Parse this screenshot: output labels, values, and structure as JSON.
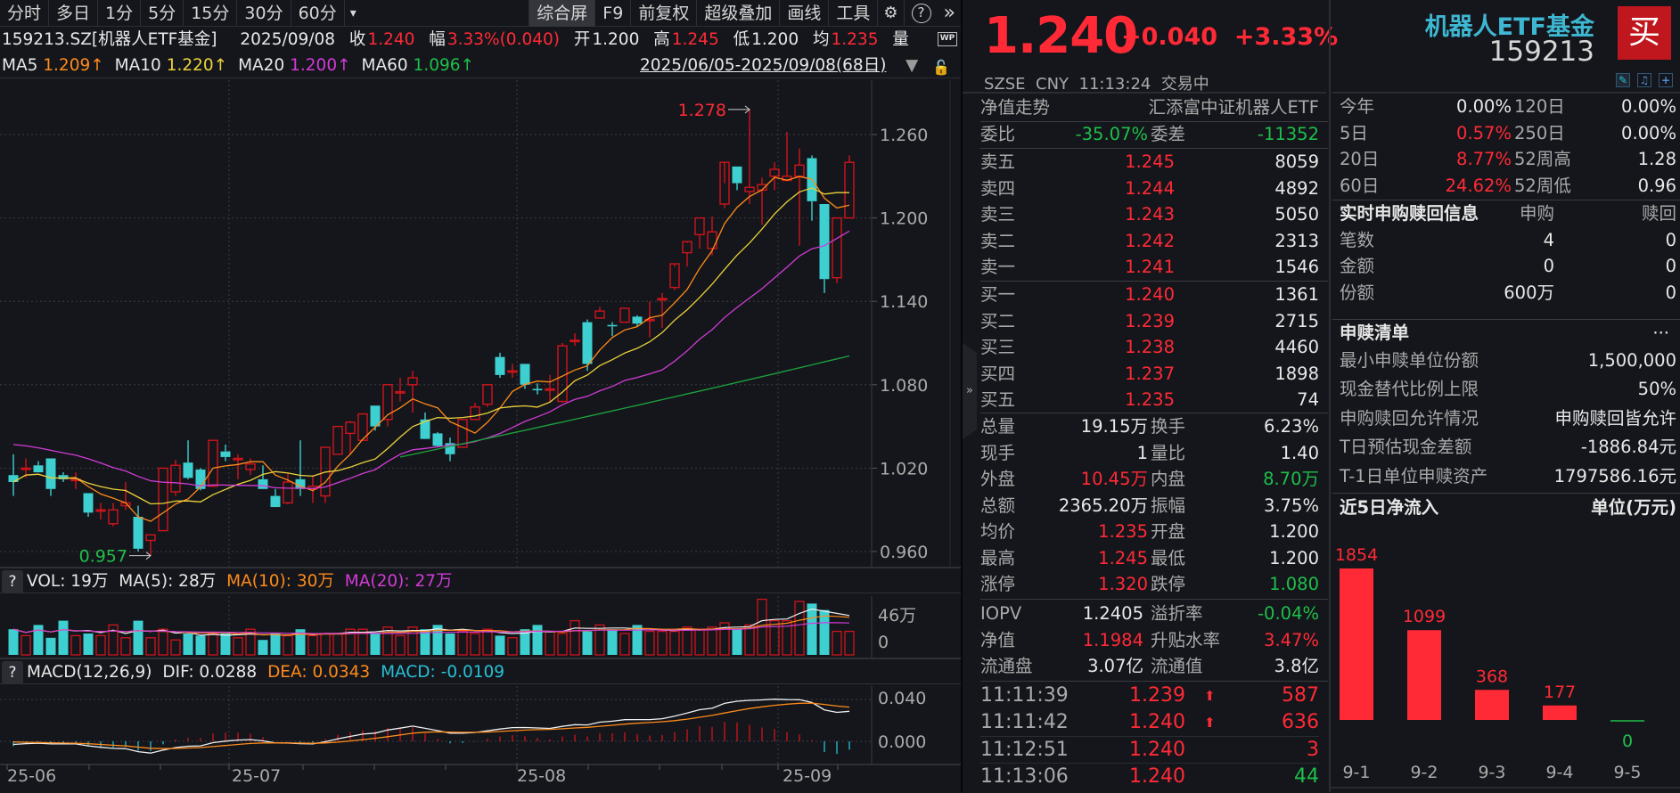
{
  "toolbar": {
    "tabs": [
      "分时",
      "多日",
      "1分",
      "5分",
      "15分",
      "30分",
      "60分"
    ],
    "more_periods": "▾",
    "right_tabs": [
      "综合屏",
      "F9",
      "前复权",
      "超级叠加",
      "画线",
      "工具"
    ],
    "active_tab": "综合屏",
    "settings_icon": "⚙",
    "help_icon": "?",
    "expand_icon": "»"
  },
  "info": {
    "symbol": "159213.SZ[机器人ETF基金]",
    "date": "2025/09/08",
    "close_label": "收",
    "close": "1.240",
    "range_label": "幅",
    "range": "3.33%(0.040)",
    "open_label": "开",
    "open": "1.200",
    "high_label": "高",
    "high": "1.245",
    "low_label": "低",
    "low": "1.200",
    "avg_label": "均",
    "avg": "1.235",
    "volume_label": "量",
    "wp_badge": "WP"
  },
  "ma": {
    "ma5_label": "MA5",
    "ma5": "1.209↑",
    "ma10_label": "MA10",
    "ma10": "1.220↑",
    "ma20_label": "MA20",
    "ma20": "1.200↑",
    "ma60_label": "MA60",
    "ma60": "1.096↑",
    "date_range": "2025/06/05-2025/09/08(68日)",
    "dropdown_icon": "▼",
    "lock_icon": "🔓"
  },
  "volume_panel": {
    "help": "?",
    "vol_label": "VOL: 19万",
    "ma5_label": "MA(5): 28万",
    "ma10_label": "MA(10): 30万",
    "ma20_label": "MA(20): 27万",
    "axis_top": "46万",
    "axis_zero": "0"
  },
  "macd_panel": {
    "help": "?",
    "title": "MACD(12,26,9)",
    "dif_label": "DIF: 0.0288",
    "dea_label": "DEA: 0.0343",
    "macd_label": "MACD: -0.0109",
    "axis_top": "0.040",
    "axis_zero": "0.000"
  },
  "x_axis": [
    "25-06",
    "25-07",
    "25-08",
    "25-09"
  ],
  "colors": {
    "up": "#ff2a36",
    "down": "#27c0d6",
    "ma5": "#ff8a1a",
    "ma10": "#ecd23a",
    "ma20": "#d23bd6",
    "ma60": "#1e9f3e",
    "up_candle": "#d0141c",
    "down_candle": "#3ecfd0"
  },
  "quote": {
    "price": "1.240",
    "change": "+0.040",
    "change_pct": "+3.33%",
    "exchange": "SZSE",
    "currency": "CNY",
    "time": "11:13:24",
    "trade_status": "交易中",
    "nav_trend_label": "净值走势",
    "fund_full_name": "汇添富中证机器人ETF",
    "weibi_label": "委比",
    "weibi": "-35.07%",
    "weicha_label": "委差",
    "weicha": "-11352",
    "asks": [
      {
        "label": "卖五",
        "price": "1.245",
        "vol": "8059"
      },
      {
        "label": "卖四",
        "price": "1.244",
        "vol": "4892"
      },
      {
        "label": "卖三",
        "price": "1.243",
        "vol": "5050"
      },
      {
        "label": "卖二",
        "price": "1.242",
        "vol": "2313"
      },
      {
        "label": "卖一",
        "price": "1.241",
        "vol": "1546"
      }
    ],
    "bids": [
      {
        "label": "买一",
        "price": "1.240",
        "vol": "1361"
      },
      {
        "label": "买二",
        "price": "1.239",
        "vol": "2715"
      },
      {
        "label": "买三",
        "price": "1.238",
        "vol": "4460"
      },
      {
        "label": "买四",
        "price": "1.237",
        "vol": "1898"
      },
      {
        "label": "买五",
        "price": "1.235",
        "vol": "74"
      }
    ],
    "stats": [
      {
        "l1": "总量",
        "v1": "19.15万",
        "c1": "white",
        "l2": "换手",
        "v2": "6.23%",
        "c2": "white"
      },
      {
        "l1": "现手",
        "v1": "1",
        "c1": "white",
        "l2": "量比",
        "v2": "1.40",
        "c2": "white"
      },
      {
        "l1": "外盘",
        "v1": "10.45万",
        "c1": "red",
        "l2": "内盘",
        "v2": "8.70万",
        "c2": "green"
      },
      {
        "l1": "总额",
        "v1": "2365.20万",
        "c1": "white",
        "l2": "振幅",
        "v2": "3.75%",
        "c2": "white"
      },
      {
        "l1": "均价",
        "v1": "1.235",
        "c1": "red",
        "l2": "开盘",
        "v2": "1.200",
        "c2": "white"
      },
      {
        "l1": "最高",
        "v1": "1.245",
        "c1": "red",
        "l2": "最低",
        "v2": "1.200",
        "c2": "white"
      },
      {
        "l1": "涨停",
        "v1": "1.320",
        "c1": "red",
        "l2": "跌停",
        "v2": "1.080",
        "c2": "green"
      }
    ],
    "etf_stats": [
      {
        "l1": "IOPV",
        "v1": "1.2405",
        "c1": "white",
        "l2": "溢折率",
        "v2": "-0.04%",
        "c2": "green"
      },
      {
        "l1": "净值",
        "v1": "1.1984",
        "c1": "red",
        "l2": "升贴水率",
        "v2": "3.47%",
        "c2": "red"
      },
      {
        "l1": "流通盘",
        "v1": "3.07亿",
        "c1": "white",
        "l2": "流通值",
        "v2": "3.8亿",
        "c2": "white"
      }
    ],
    "ticks": [
      {
        "time": "11:11:39",
        "price": "1.239",
        "arrow": "🠅",
        "vol": "587",
        "vc": "red"
      },
      {
        "time": "11:11:42",
        "price": "1.240",
        "arrow": "🠅",
        "vol": "636",
        "vc": "red"
      },
      {
        "time": "11:12:51",
        "price": "1.240",
        "arrow": "",
        "vol": "3",
        "vc": "red"
      },
      {
        "time": "11:13:06",
        "price": "1.240",
        "arrow": "",
        "vol": "44",
        "vc": "green"
      }
    ]
  },
  "right": {
    "fund_name": "机器人ETF基金",
    "fund_code": "159213",
    "buy_label": "买",
    "perf": [
      {
        "l1": "今年",
        "v1": "0.00%",
        "c1": "white",
        "l2": "120日",
        "v2": "0.00%"
      },
      {
        "l1": "5日",
        "v1": "0.57%",
        "c1": "red",
        "l2": "250日",
        "v2": "0.00%"
      },
      {
        "l1": "20日",
        "v1": "8.77%",
        "c1": "red",
        "l2": "52周高",
        "v2": "1.28"
      },
      {
        "l1": "60日",
        "v1": "24.62%",
        "c1": "red",
        "l2": "52周低",
        "v2": "0.96"
      }
    ],
    "creation": {
      "title": "实时申购赎回信息",
      "col1": "申购",
      "col2": "赎回",
      "rows": [
        {
          "label": "笔数",
          "sub": "4",
          "red": "0"
        },
        {
          "label": "金额",
          "sub": "0",
          "red": "0"
        },
        {
          "label": "份额",
          "sub": "600万",
          "red": "0"
        }
      ]
    },
    "pcf": {
      "title": "申赎清单",
      "more": "···",
      "rows": [
        {
          "label": "最小申赎单位份额",
          "value": "1,500,000"
        },
        {
          "label": "现金替代比例上限",
          "value": "50%"
        },
        {
          "label": "申购赎回允许情况",
          "value": "申购赎回皆允许"
        },
        {
          "label": "T日预估现金差额",
          "value": "-1886.84元"
        },
        {
          "label": "T-1日单位申赎资产",
          "value": "1797586.16元"
        }
      ]
    },
    "flow": {
      "title": "近5日净流入",
      "unit": "单位(万元)"
    }
  },
  "chart_data": [
    {
      "type": "bar",
      "title": "近5日净流入",
      "ylabel": "单位(万元)",
      "categories": [
        "9-1",
        "9-2",
        "9-3",
        "9-4",
        "9-5"
      ],
      "values": [
        1854,
        1099,
        368,
        177,
        0
      ]
    },
    {
      "type": "candlestick",
      "title": "159213.SZ 日K",
      "y_ticks": [
        "1.260",
        "1.200",
        "1.140",
        "1.080",
        "1.020",
        "0.960"
      ],
      "x_ticks": [
        "25-06",
        "25-07",
        "25-08",
        "25-09"
      ],
      "annotations": [
        {
          "label": "1.278",
          "type": "high"
        },
        {
          "label": "0.957",
          "type": "low"
        }
      ],
      "candles": [
        [
          1.015,
          1.03,
          1.01,
          1.0
        ],
        [
          1.02,
          1.027,
          1.02,
          1.013
        ],
        [
          1.022,
          1.025,
          1.017,
          1.02
        ],
        [
          1.027,
          1.027,
          1.005,
          1.0
        ],
        [
          1.015,
          1.017,
          1.012,
          1.01
        ],
        [
          1.012,
          1.017,
          1.012,
          1.005
        ],
        [
          1.002,
          1.002,
          0.988,
          0.985
        ],
        [
          0.99,
          0.995,
          0.99,
          0.983
        ],
        [
          0.98,
          0.995,
          0.99,
          0.978
        ],
        [
          0.993,
          1.01,
          0.995,
          0.99
        ],
        [
          0.985,
          0.993,
          0.962,
          0.96
        ],
        [
          0.968,
          0.972,
          0.972,
          0.957
        ],
        [
          0.975,
          1.02,
          1.02,
          0.975
        ],
        [
          1.003,
          1.026,
          1.022,
          1.0
        ],
        [
          1.024,
          1.04,
          1.013,
          1.012
        ],
        [
          1.019,
          1.02,
          1.005,
          1.004
        ],
        [
          1.007,
          1.04,
          1.04,
          1.007
        ],
        [
          1.032,
          1.037,
          1.028,
          1.025
        ],
        [
          1.027,
          1.03,
          1.027,
          1.012
        ],
        [
          1.019,
          1.027,
          1.023,
          1.015
        ],
        [
          1.012,
          1.022,
          1.005,
          1.005
        ],
        [
          1.0,
          1.005,
          0.992,
          0.992
        ],
        [
          0.995,
          1.016,
          1.01,
          0.994
        ],
        [
          1.012,
          1.04,
          1.005,
          1.0
        ],
        [
          1.005,
          1.015,
          1.007,
          0.995
        ],
        [
          1.0,
          1.035,
          1.035,
          0.995
        ],
        [
          1.03,
          1.05,
          1.05,
          1.03
        ],
        [
          1.045,
          1.054,
          1.053,
          1.03
        ],
        [
          1.04,
          1.059,
          1.059,
          1.04
        ],
        [
          1.065,
          1.065,
          1.05,
          1.047
        ],
        [
          1.055,
          1.08,
          1.08,
          1.05
        ],
        [
          1.075,
          1.085,
          1.075,
          1.068
        ],
        [
          1.08,
          1.09,
          1.085,
          1.06
        ],
        [
          1.055,
          1.06,
          1.041,
          1.055
        ],
        [
          1.045,
          1.046,
          1.036,
          1.035
        ],
        [
          1.038,
          1.042,
          1.03,
          1.025
        ],
        [
          1.035,
          1.055,
          1.055,
          1.035
        ],
        [
          1.055,
          1.067,
          1.064,
          1.055
        ],
        [
          1.066,
          1.08,
          1.08,
          1.064
        ],
        [
          1.1,
          1.103,
          1.087,
          1.085
        ],
        [
          1.09,
          1.095,
          1.09,
          1.085
        ],
        [
          1.095,
          1.095,
          1.08,
          1.077
        ],
        [
          1.077,
          1.081,
          1.076,
          1.073
        ],
        [
          1.076,
          1.087,
          1.077,
          1.067
        ],
        [
          1.068,
          1.11,
          1.108,
          1.067
        ],
        [
          1.112,
          1.117,
          1.112,
          1.108
        ],
        [
          1.125,
          1.127,
          1.095,
          1.09
        ],
        [
          1.128,
          1.136,
          1.133,
          1.128
        ],
        [
          1.123,
          1.125,
          1.122,
          1.115
        ],
        [
          1.125,
          1.135,
          1.135,
          1.125
        ],
        [
          1.129,
          1.13,
          1.124,
          1.122
        ],
        [
          1.127,
          1.14,
          1.127,
          1.114
        ],
        [
          1.142,
          1.146,
          1.142,
          1.121
        ],
        [
          1.15,
          1.165,
          1.167,
          1.148
        ],
        [
          1.175,
          1.182,
          1.183,
          1.165
        ],
        [
          1.188,
          1.2,
          1.2,
          1.178
        ],
        [
          1.178,
          1.201,
          1.19,
          1.173
        ],
        [
          1.21,
          1.225,
          1.24,
          1.207
        ],
        [
          1.237,
          1.237,
          1.225,
          1.22
        ],
        [
          1.219,
          1.278,
          1.222,
          1.21
        ],
        [
          1.22,
          1.229,
          1.224,
          1.195
        ],
        [
          1.23,
          1.24,
          1.235,
          1.22
        ],
        [
          1.227,
          1.262,
          1.23,
          1.228
        ],
        [
          1.23,
          1.25,
          1.238,
          1.18
        ],
        [
          1.243,
          1.245,
          1.212,
          1.198
        ],
        [
          1.21,
          1.21,
          1.156,
          1.146
        ],
        [
          1.157,
          1.2,
          1.2,
          1.153
        ],
        [
          1.2,
          1.245,
          1.24,
          1.2
        ]
      ]
    }
  ]
}
